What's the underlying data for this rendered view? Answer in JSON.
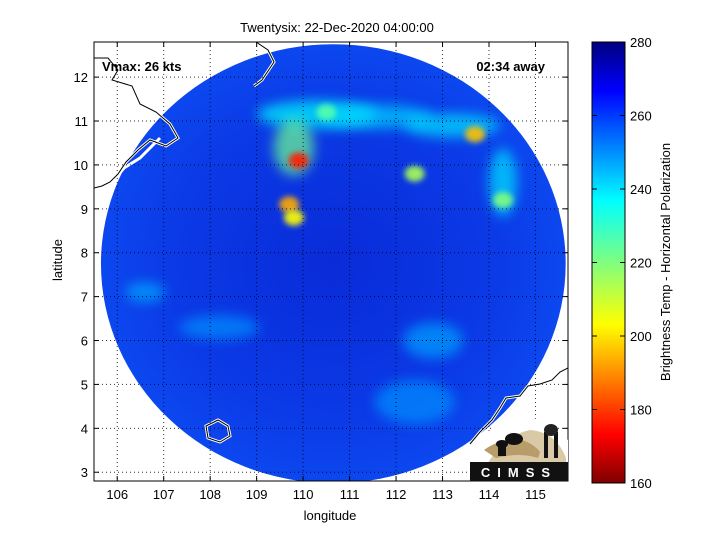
{
  "title": "Twentysix: 22-Dec-2020 04:00:00",
  "vmax_label": "Vmax: 26 kts",
  "time_away": "02:34 away",
  "logo_text": "CIMSS",
  "colors": {
    "land_bg": "#00008f",
    "coast": "#ffffff",
    "grid": "#000000"
  },
  "map": {
    "type": "microwave_brightness_temperature",
    "xlabel": "longitude",
    "ylabel": "latitude",
    "xlim": [
      105.5,
      115.7
    ],
    "ylim": [
      2.8,
      12.8
    ],
    "xticks": [
      106,
      107,
      108,
      109,
      110,
      111,
      112,
      113,
      114,
      115
    ],
    "yticks": [
      3,
      4,
      5,
      6,
      7,
      8,
      9,
      10,
      11,
      12
    ],
    "grid": true,
    "swath_center": [
      110.65,
      7.75
    ],
    "swath_radius_deg": 5.0
  },
  "colorbar": {
    "label": "Brightness Temp - Horizontal Polarization",
    "min": 160,
    "max": 280,
    "ticks": [
      160,
      180,
      200,
      220,
      240,
      260,
      280
    ],
    "colormap": "jet"
  },
  "features": [
    {
      "name": "central-convection",
      "lon": 109.9,
      "lat": 10.1,
      "tb": 178
    },
    {
      "name": "convection-core-2",
      "lon": 109.7,
      "lat": 9.1,
      "tb": 195
    },
    {
      "name": "convection-core-3",
      "lon": 109.8,
      "lat": 8.8,
      "tb": 205
    },
    {
      "name": "northern-band",
      "lon": 110.5,
      "lat": 11.2,
      "tb": 225
    },
    {
      "name": "northeast-core",
      "lon": 113.7,
      "lat": 10.7,
      "tb": 198
    },
    {
      "name": "east-cell",
      "lon": 112.4,
      "lat": 9.8,
      "tb": 215
    },
    {
      "name": "far-east-cell",
      "lon": 114.3,
      "lat": 9.2,
      "tb": 220
    }
  ]
}
